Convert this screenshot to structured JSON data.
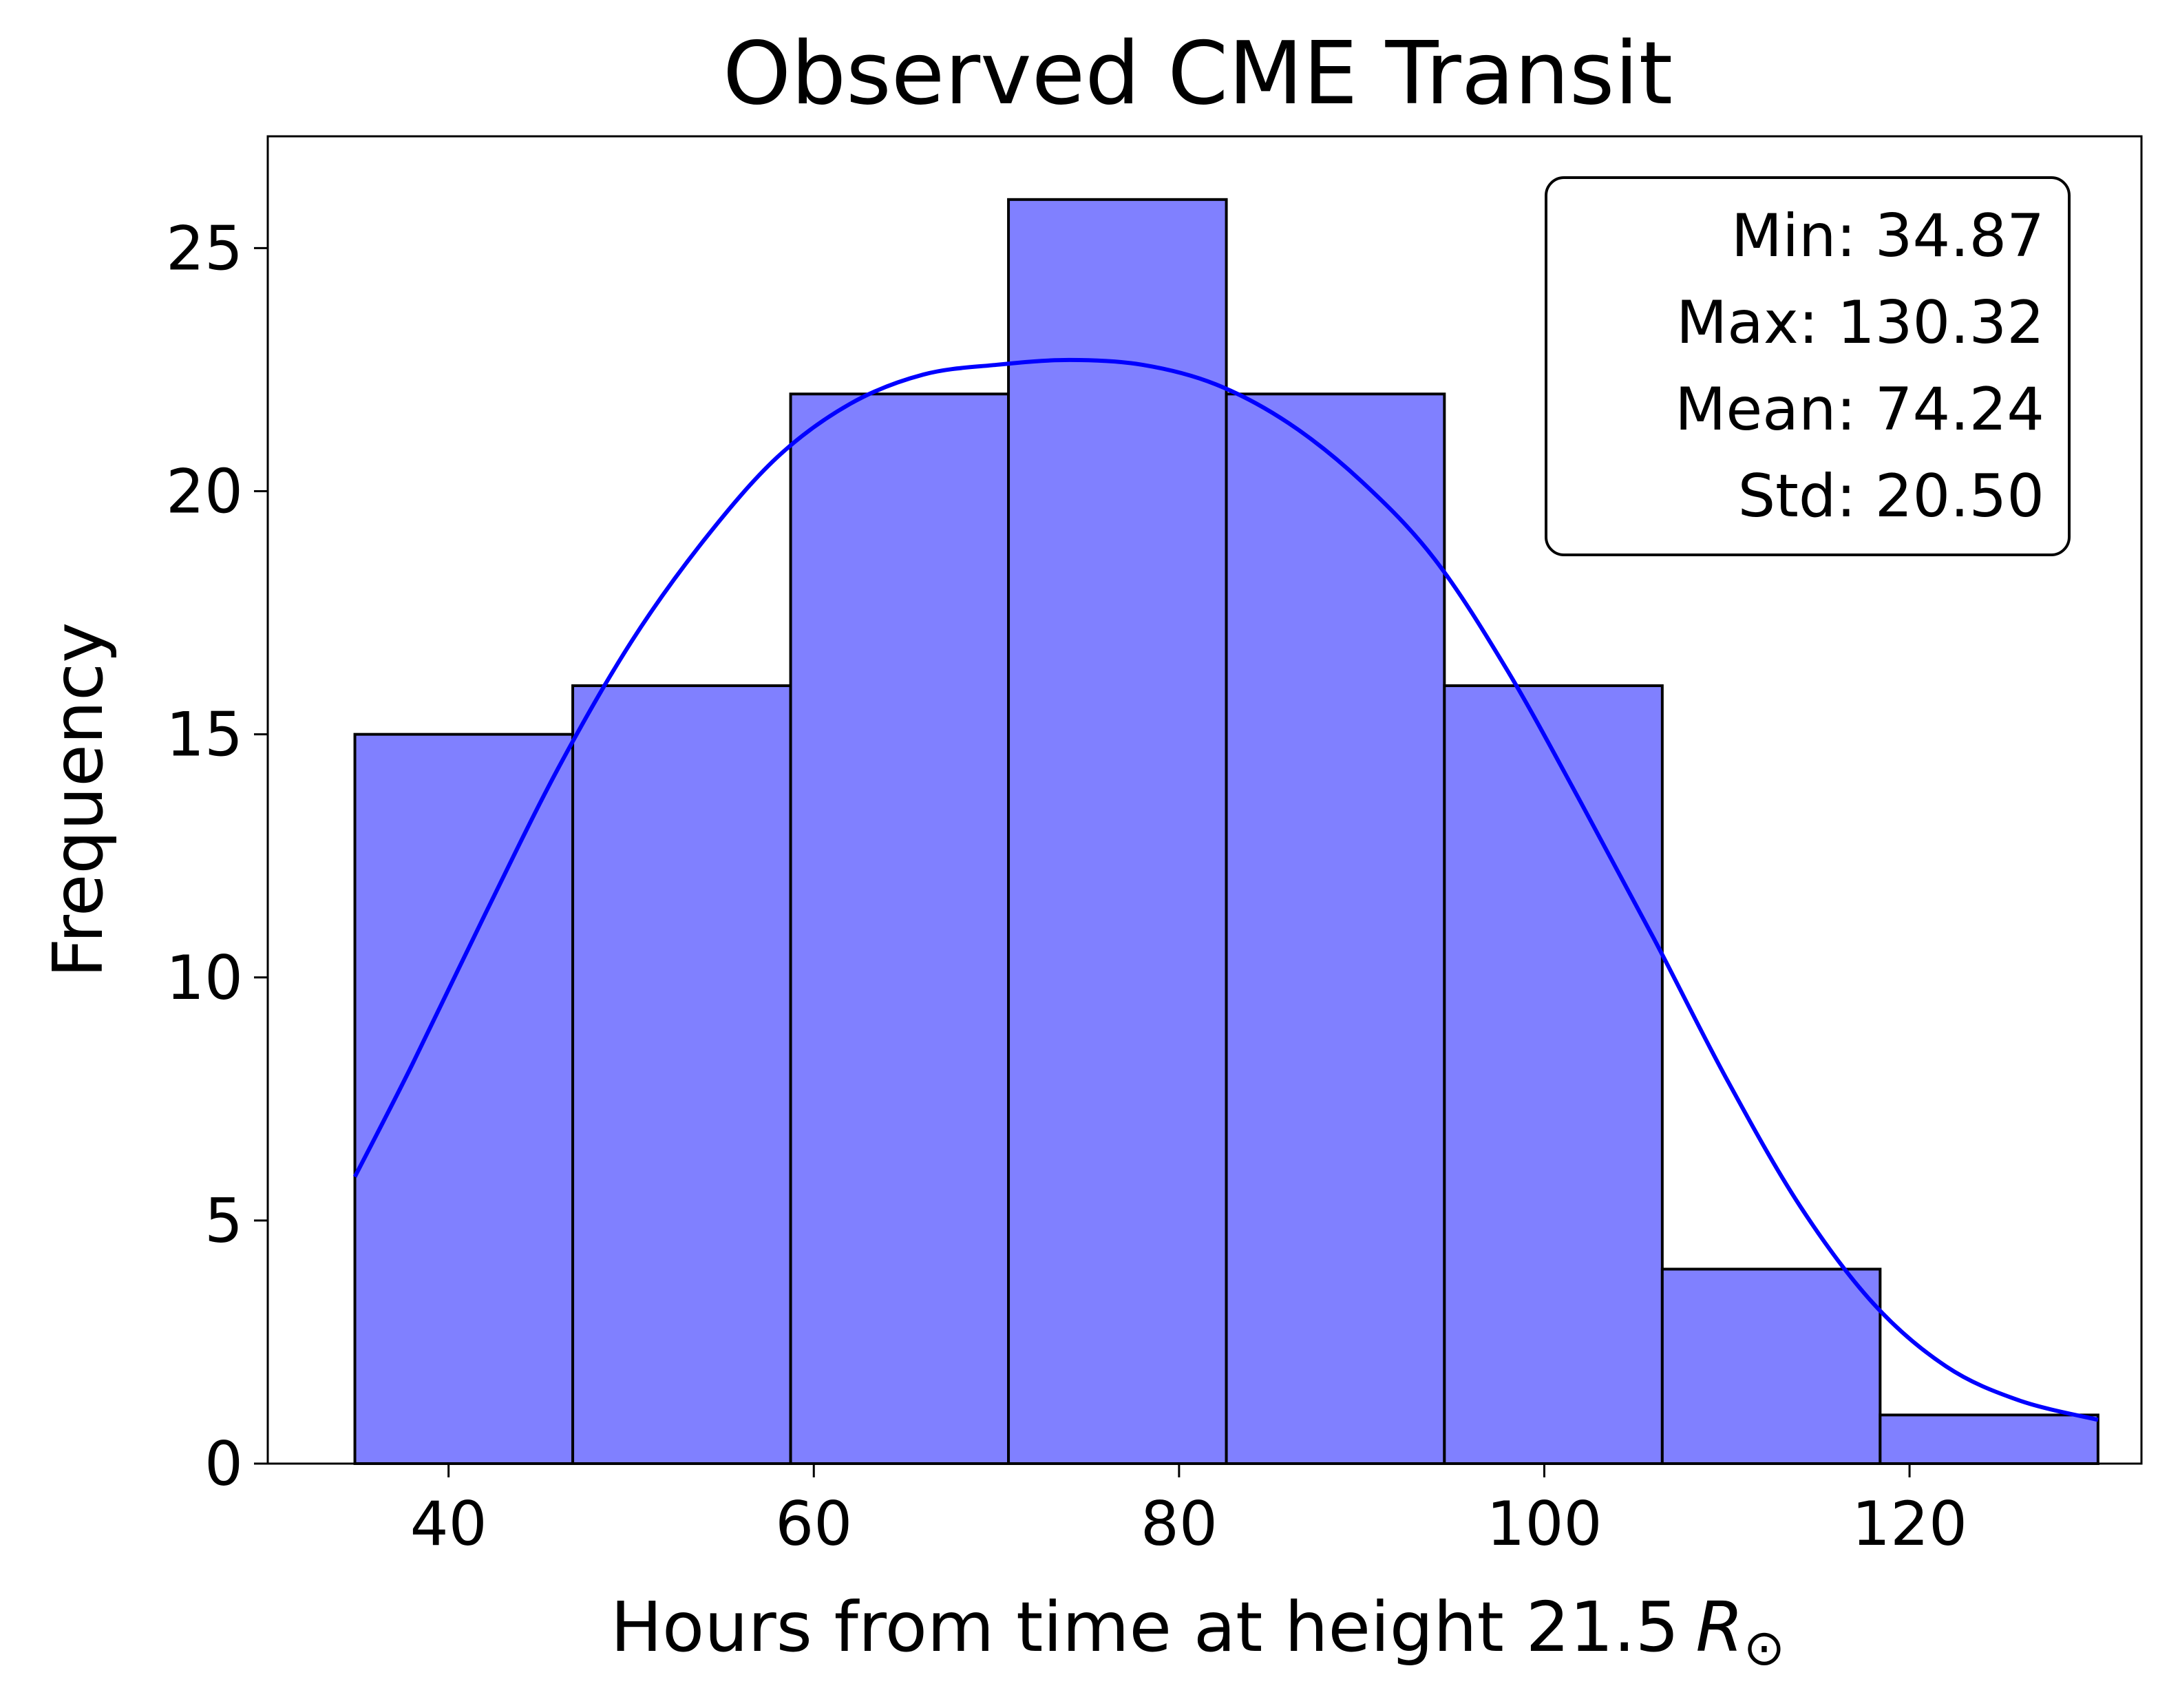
{
  "chart_data": {
    "type": "bar",
    "title": "Observed CME Transit",
    "xlabel": "Hours from time at height 21.5",
    "xlabel_symbol": "R",
    "xlabel_subscript": "⊙",
    "ylabel": "Frequency",
    "xlim": [
      30.1,
      132.7
    ],
    "ylim": [
      0,
      27.3
    ],
    "xticks": [
      40,
      60,
      80,
      100,
      120
    ],
    "yticks": [
      0,
      5,
      10,
      15,
      20,
      25
    ],
    "bin_edges": [
      34.87,
      46.8,
      58.73,
      70.66,
      82.59,
      94.53,
      106.46,
      118.39,
      130.32
    ],
    "counts": [
      15,
      16,
      22,
      26,
      22,
      16,
      4,
      1
    ],
    "kde_curve": {
      "x": [
        34.87,
        38,
        42,
        46,
        50,
        54,
        58,
        62,
        66,
        70,
        74,
        78,
        82,
        86,
        90,
        94,
        98,
        102,
        106,
        110,
        114,
        118,
        122,
        126,
        130.32
      ],
      "y": [
        5.9,
        8.2,
        11.3,
        14.3,
        16.9,
        19.0,
        20.7,
        21.8,
        22.4,
        22.6,
        22.7,
        22.6,
        22.2,
        21.4,
        20.2,
        18.6,
        16.3,
        13.6,
        10.8,
        7.9,
        5.3,
        3.3,
        2.0,
        1.3,
        0.9
      ]
    },
    "grid": false,
    "colors": {
      "bar_fill": "#8080ff",
      "bar_edge": "#000000",
      "kde_line": "#0000ff"
    }
  },
  "stats_box": {
    "lines": [
      "Min: 34.87",
      "Max: 130.32",
      "Mean: 74.24",
      "Std: 20.50"
    ],
    "placement": "top-right"
  }
}
